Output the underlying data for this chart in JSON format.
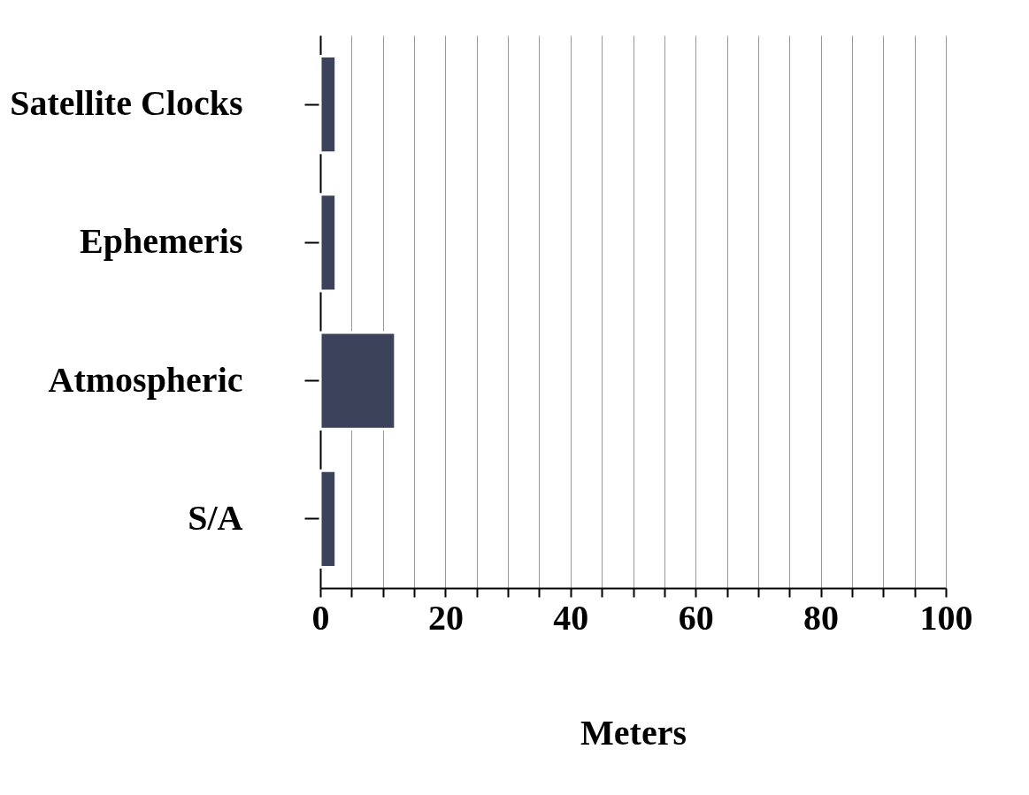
{
  "chart_data": {
    "type": "bar",
    "orientation": "horizontal",
    "xlabel": "Meters",
    "categories": [
      "Satellite Clocks",
      "Ephemeris",
      "Atmospheric",
      "S/A"
    ],
    "values": [
      2.5,
      2.5,
      12,
      2.5
    ],
    "color": "#3b4259",
    "xlim": [
      0,
      100
    ],
    "xticks": [
      0,
      {
        "value": 5,
        "label": null
      },
      {
        "value": 10,
        "label": null
      },
      {
        "value": 15,
        "label": null
      },
      20,
      {
        "value": 25,
        "label": null
      },
      {
        "value": 30,
        "label": null
      },
      {
        "value": 35,
        "label": null
      },
      40,
      {
        "value": 45,
        "label": null
      },
      {
        "value": 50,
        "label": null
      },
      {
        "value": 55,
        "label": null
      },
      60,
      {
        "value": 65,
        "label": null
      },
      {
        "value": 70,
        "label": null
      },
      {
        "value": 75,
        "label": null
      },
      80,
      {
        "value": 85,
        "label": null
      },
      {
        "value": 90,
        "label": null
      },
      {
        "value": 95,
        "label": null
      },
      100
    ],
    "grid": "x"
  }
}
